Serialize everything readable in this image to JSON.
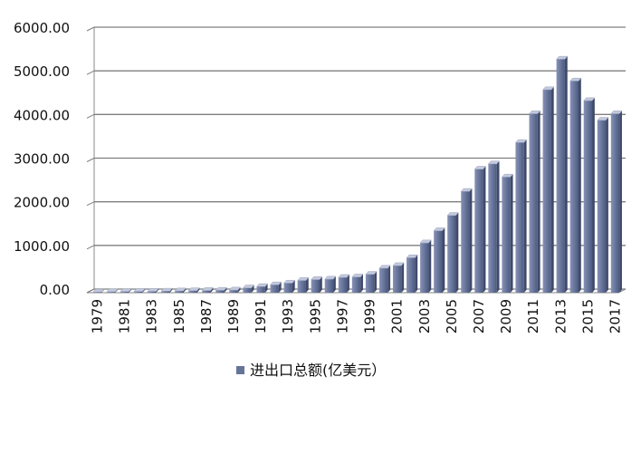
{
  "chart_data": {
    "type": "bar",
    "categories": [
      "1979",
      "1980",
      "1981",
      "1982",
      "1983",
      "1984",
      "1985",
      "1986",
      "1987",
      "1988",
      "1989",
      "1990",
      "1991",
      "1992",
      "1993",
      "1994",
      "1995",
      "1996",
      "1997",
      "1998",
      "1999",
      "2000",
      "2001",
      "2002",
      "2003",
      "2004",
      "2005",
      "2006",
      "2007",
      "2008",
      "2009",
      "2010",
      "2011",
      "2012",
      "2013",
      "2014",
      "2015",
      "2016",
      "2017"
    ],
    "x_tick_labels": [
      "1979",
      "1981",
      "1983",
      "1985",
      "1987",
      "1989",
      "1991",
      "1993",
      "1995",
      "1997",
      "1999",
      "2001",
      "2003",
      "2005",
      "2007",
      "2009",
      "2011",
      "2013",
      "2015",
      "2017"
    ],
    "series": [
      {
        "name": "进出口总额(亿美元）",
        "values": [
          15,
          20,
          25,
          28,
          30,
          35,
          40,
          45,
          50,
          55,
          60,
          110,
          140,
          180,
          220,
          280,
          300,
          310,
          350,
          360,
          420,
          560,
          620,
          800,
          1140,
          1420,
          1770,
          2320,
          2830,
          2950,
          2650,
          3440,
          4100,
          4650,
          5350,
          4850,
          4400,
          3950,
          4100
        ],
        "color": "#66749a"
      }
    ],
    "y_tick_labels": [
      "0.00",
      "1000.00",
      "2000.00",
      "3000.00",
      "4000.00",
      "5000.00",
      "6000.00"
    ],
    "ylim": [
      0,
      6000
    ],
    "grid": true,
    "legend_position": "bottom",
    "title": "",
    "xlabel": "",
    "ylabel": ""
  }
}
